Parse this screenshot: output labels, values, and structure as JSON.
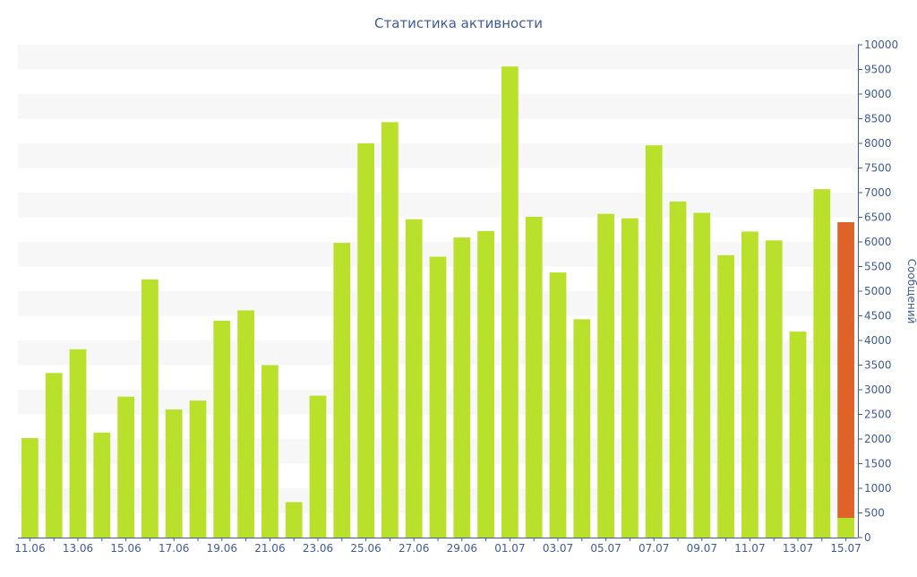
{
  "chart_data": {
    "type": "bar",
    "title": "Статистика активности",
    "xlabel": "",
    "ylabel": "Сообщений",
    "ylim": [
      0,
      10000
    ],
    "y_ticks": [
      0,
      500,
      1000,
      1500,
      2000,
      2500,
      3000,
      3500,
      4000,
      4500,
      5000,
      5500,
      6000,
      6500,
      7000,
      7500,
      8000,
      8500,
      9000,
      9500,
      10000
    ],
    "y_axis_position": "right",
    "grid": "alternating-horizontal-bands",
    "legend": "none",
    "categories": [
      "11.06",
      "12.06",
      "13.06",
      "14.06",
      "15.06",
      "16.06",
      "17.06",
      "18.06",
      "19.06",
      "20.06",
      "21.06",
      "22.06",
      "23.06",
      "24.06",
      "25.06",
      "26.06",
      "27.06",
      "28.06",
      "29.06",
      "30.06",
      "01.07",
      "02.07",
      "03.07",
      "04.07",
      "05.07",
      "06.07",
      "07.07",
      "08.07",
      "09.07",
      "10.07",
      "11.07",
      "12.07",
      "13.07",
      "14.07",
      "15.07"
    ],
    "x_tick_labels": [
      "11.06",
      "13.06",
      "15.06",
      "17.06",
      "19.06",
      "21.06",
      "23.06",
      "25.06",
      "27.06",
      "29.06",
      "01.07",
      "03.07",
      "05.07",
      "07.07",
      "09.07",
      "11.07",
      "13.07",
      "15.07"
    ],
    "series": [
      {
        "name": "",
        "color": "#b9e02b",
        "values": [
          2020,
          3340,
          3820,
          2130,
          2860,
          5240,
          2600,
          2780,
          4400,
          4610,
          3500,
          720,
          2880,
          5980,
          8000,
          8430,
          6460,
          5700,
          6090,
          6220,
          9560,
          6510,
          5380,
          4430,
          6570,
          6480,
          7960,
          6820,
          6590,
          5730,
          6210,
          6030,
          4180,
          7070,
          400
        ]
      },
      {
        "name": "",
        "color": "#e0622b",
        "values": [
          0,
          0,
          0,
          0,
          0,
          0,
          0,
          0,
          0,
          0,
          0,
          0,
          0,
          0,
          0,
          0,
          0,
          0,
          0,
          0,
          0,
          0,
          0,
          0,
          0,
          0,
          0,
          0,
          0,
          0,
          0,
          0,
          0,
          0,
          6000
        ]
      }
    ]
  },
  "colors": {
    "text": "#3e5c9a",
    "band": "#f7f7f7",
    "axis": "#3e5c9a"
  }
}
